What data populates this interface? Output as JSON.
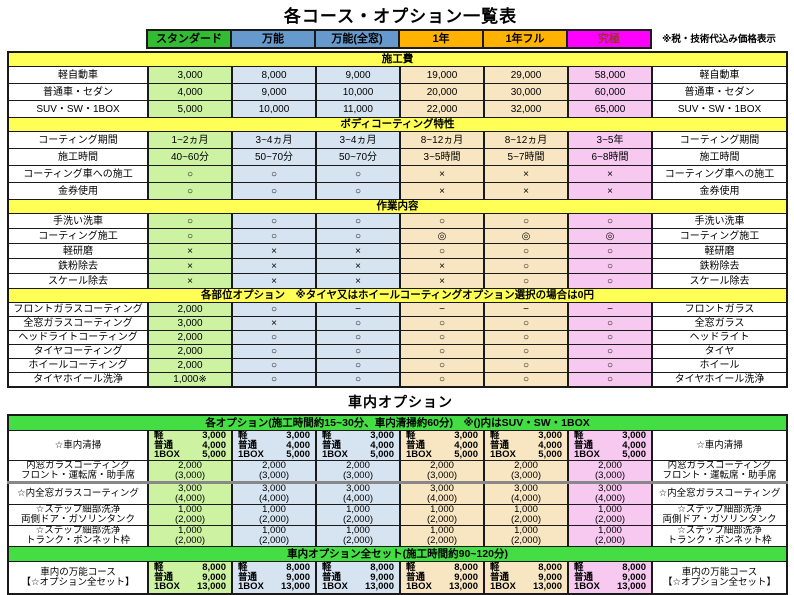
{
  "title": "各コース・オプション一覧表",
  "tax_note": "※税・技術代込み価格表示",
  "colors": {
    "banner_yellow": "#ffff55",
    "banner_green": "#44dd44",
    "header_green": "#33bb33",
    "header_blue": "#6699cc",
    "header_orange": "#ffb300",
    "header_magenta": "#ff00ff",
    "cell_green": "#ccf2a2",
    "cell_blue": "#d6e4f2",
    "cell_orange": "#f8e6c2",
    "cell_pink": "#f7c9f1",
    "ultimate_text": "#993333"
  },
  "courses": [
    {
      "label": "スタンダード",
      "header_bg": "#33bb33",
      "header_fg": "#000000",
      "cell_bg": "#ccf2a2"
    },
    {
      "label": "万能",
      "header_bg": "#6699cc",
      "header_fg": "#000000",
      "cell_bg": "#d6e4f2"
    },
    {
      "label": "万能(全窓)",
      "header_bg": "#6699cc",
      "header_fg": "#000000",
      "cell_bg": "#d6e4f2"
    },
    {
      "label": "1年",
      "header_bg": "#ffb300",
      "header_fg": "#000000",
      "cell_bg": "#f8e6c2"
    },
    {
      "label": "1年フル",
      "header_bg": "#ffb300",
      "header_fg": "#000000",
      "cell_bg": "#f8e6c2"
    },
    {
      "label": "究極",
      "header_bg": "#ff00ff",
      "header_fg": "#993333",
      "cell_bg": "#f7c9f1"
    }
  ],
  "top_sections": [
    {
      "banner": "施工費",
      "rows": [
        {
          "left": "軽自動車",
          "values": [
            "3,000",
            "8,000",
            "9,000",
            "19,000",
            "29,000",
            "58,000"
          ],
          "right": "軽自動車"
        },
        {
          "left": "普通車・セダン",
          "values": [
            "4,000",
            "9,000",
            "10,000",
            "20,000",
            "30,000",
            "60,000"
          ],
          "right": "普通車・セダン"
        },
        {
          "left": "SUV・SW・1BOX",
          "values": [
            "5,000",
            "10,000",
            "11,000",
            "22,000",
            "32,000",
            "65,000"
          ],
          "right": "SUV・SW・1BOX"
        }
      ]
    },
    {
      "banner": "ボディコーティング特性",
      "rows": [
        {
          "left": "コーティング期間",
          "values": [
            "1~2ヵ月",
            "3~4ヵ月",
            "3~4ヵ月",
            "8~12ヵ月",
            "8~12ヵ月",
            "3~5年"
          ],
          "right": "コーティング期間"
        },
        {
          "left": "施工時間",
          "values": [
            "40~60分",
            "50~70分",
            "50~70分",
            "3~5時間",
            "5~7時間",
            "6~8時間"
          ],
          "right": "施工時間"
        },
        {
          "left": "コーティング車への施工",
          "values": [
            "○",
            "○",
            "○",
            "×",
            "×",
            "×"
          ],
          "right": "コーティング車への施工"
        },
        {
          "left": "金券使用",
          "values": [
            "○",
            "○",
            "○",
            "×",
            "×",
            "×"
          ],
          "right": "金券使用"
        }
      ]
    },
    {
      "banner": "作業内容",
      "rows": [
        {
          "left": "手洗い洗車",
          "values": [
            "○",
            "○",
            "○",
            "○",
            "○",
            "○"
          ],
          "right": "手洗い洗車"
        },
        {
          "left": "コーティング施工",
          "values": [
            "○",
            "○",
            "○",
            "◎",
            "◎",
            "◎"
          ],
          "right": "コーティング施工"
        },
        {
          "left": "軽研磨",
          "values": [
            "×",
            "×",
            "×",
            "○",
            "○",
            "○"
          ],
          "right": "軽研磨"
        },
        {
          "left": "鉄粉除去",
          "values": [
            "×",
            "×",
            "×",
            "×",
            "○",
            "○"
          ],
          "right": "鉄粉除去"
        },
        {
          "left": "スケール除去",
          "values": [
            "×",
            "×",
            "×",
            "×",
            "○",
            "○"
          ],
          "right": "スケール除去"
        }
      ]
    },
    {
      "banner": "各部位オプション　※タイヤ又はホイールコーティングオプション選択の場合は0円",
      "rows": [
        {
          "left": "フロントガラスコーティング",
          "values": [
            "2,000",
            "○",
            "−",
            "−",
            "−",
            "−"
          ],
          "right": "フロントガラス"
        },
        {
          "left": "全窓ガラスコーティング",
          "values": [
            "3,000",
            "×",
            "○",
            "○",
            "○",
            "○"
          ],
          "right": "全窓ガラス"
        },
        {
          "left": "ヘッドライトコーティング",
          "values": [
            "2,000",
            "○",
            "○",
            "○",
            "○",
            "○"
          ],
          "right": "ヘッドライト"
        },
        {
          "left": "タイヤコーティング",
          "values": [
            "2,000",
            "○",
            "○",
            "○",
            "○",
            "○"
          ],
          "right": "タイヤ"
        },
        {
          "left": "ホイールコーティング",
          "values": [
            "2,000",
            "○",
            "○",
            "○",
            "○",
            "○"
          ],
          "right": "ホイール"
        },
        {
          "left": "タイヤホイール洗浄",
          "values": [
            "1,000※",
            "○",
            "○",
            "○",
            "○",
            "○"
          ],
          "right": "タイヤホイール洗浄"
        }
      ]
    }
  ],
  "interior": {
    "title": "車内オプション",
    "sections": [
      {
        "banner": "各オプション(施工時間約15~30分、車内清掃約60分)　※()内はSUV・SW・1BOX",
        "rows": [
          {
            "style": "pairs",
            "left": [
              "☆車内清掃"
            ],
            "right": [
              "☆車内清掃"
            ],
            "cell_lines": [
              [
                "軽",
                "3,000"
              ],
              [
                "普通",
                "4,000"
              ],
              [
                "1BOX",
                "5,000"
              ]
            ]
          },
          {
            "style": "stack",
            "left": [
              "内窓ガラスコーティング",
              "フロント・運転席・助手席"
            ],
            "right": [
              "内窓ガラスコーティング",
              "フロント・運転席・助手席"
            ],
            "cell_lines": [
              "2,000",
              "(3,000)"
            ]
          },
          {
            "style": "stack",
            "left": [
              "☆内全窓ガラスコーティング"
            ],
            "right": [
              "☆内全窓ガラスコーティング"
            ],
            "cell_lines": [
              "3,000",
              "(4,000)"
            ]
          },
          {
            "style": "stack",
            "left": [
              "☆ステップ細部洗浄",
              "両側ドア・ガソリンタンク"
            ],
            "right": [
              "☆ステップ細部洗浄",
              "両側ドア・ガソリンタンク"
            ],
            "cell_lines": [
              "1,000",
              "(2,000)"
            ]
          },
          {
            "style": "stack",
            "left": [
              "☆ステップ細部洗浄",
              "トランク・ボンネット枠"
            ],
            "right": [
              "☆ステップ細部洗浄",
              "トランク・ボンネット枠"
            ],
            "cell_lines": [
              "1,000",
              "(2,000)"
            ]
          }
        ]
      },
      {
        "banner": "車内オプション全セット(施工時間約90~120分)",
        "rows": [
          {
            "style": "pairs",
            "left": [
              "車内の万能コース",
              "【☆オプション全セット】"
            ],
            "right": [
              "車内の万能コース",
              "【☆オプション全セット】"
            ],
            "cell_lines": [
              [
                "軽",
                "8,000"
              ],
              [
                "普通",
                "9,000"
              ],
              [
                "1BOX",
                "13,000"
              ]
            ]
          }
        ]
      }
    ]
  }
}
